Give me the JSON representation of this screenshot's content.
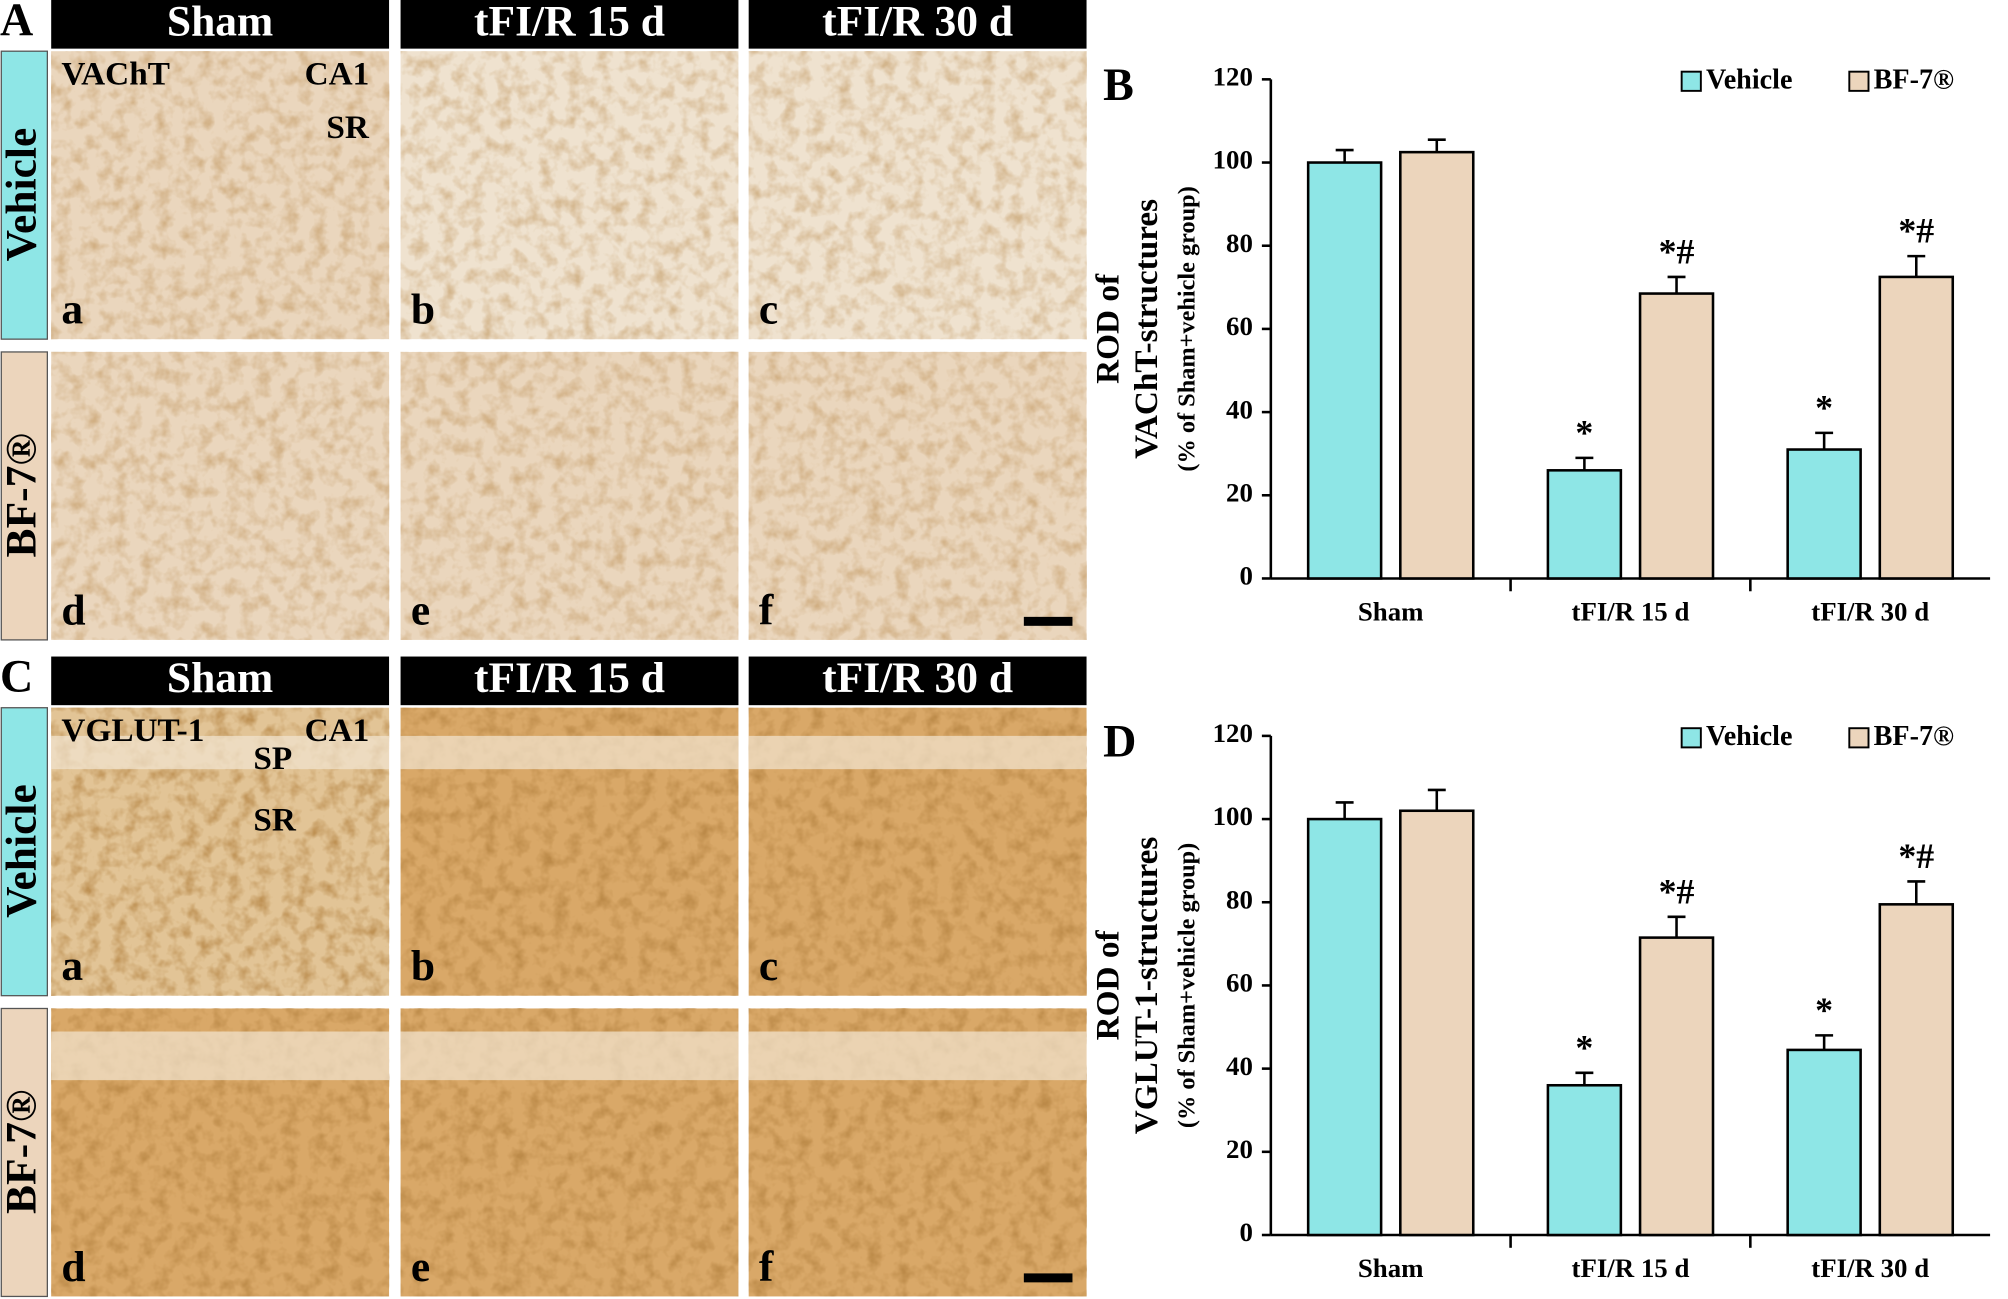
{
  "panels": [
    {
      "letter": "A",
      "columns": [
        "Sham",
        "tFI/R 15 d",
        "tFI/R 30 d"
      ],
      "rows": [
        "Vehicle",
        "BF-7®"
      ],
      "marker": "VAChT",
      "region_labels": [
        "CA1",
        "SR"
      ],
      "image_letters": [
        "a",
        "b",
        "c",
        "d",
        "e",
        "f"
      ]
    },
    {
      "letter": "C",
      "columns": [
        "Sham",
        "tFI/R 15 d",
        "tFI/R 30 d"
      ],
      "rows": [
        "Vehicle",
        "BF-7®"
      ],
      "marker": "VGLUT-1",
      "region_labels": [
        "CA1",
        "SP",
        "SR"
      ],
      "image_letters": [
        "a",
        "b",
        "c",
        "d",
        "e",
        "f"
      ]
    }
  ],
  "chart_data": [
    {
      "type": "bar",
      "panel_label": "B",
      "ylabel": [
        "ROD of",
        "VAChT-structures"
      ],
      "ylabel_note": "(% of Sham+vehicle group)",
      "categories": [
        "Sham",
        "tFI/R 15 d",
        "tFI/R 30 d"
      ],
      "series": [
        {
          "name": "Vehicle",
          "color": "#8ee6e6",
          "values": [
            100,
            26,
            31
          ],
          "errors": [
            3,
            3,
            4
          ],
          "annotations": [
            null,
            "*",
            "*"
          ]
        },
        {
          "name": "BF-7®",
          "color": "#ecd5bc",
          "values": [
            102.5,
            68.5,
            72.5
          ],
          "errors": [
            3,
            4,
            5
          ],
          "annotations": [
            null,
            "*#",
            "*#"
          ]
        }
      ],
      "ylim": [
        0,
        120
      ],
      "yticks": [
        0,
        20,
        40,
        60,
        80,
        100,
        120
      ],
      "legend": "top-right"
    },
    {
      "type": "bar",
      "panel_label": "D",
      "ylabel": [
        "ROD of",
        "VGLUT-1-structures"
      ],
      "ylabel_note": "(% of Sham+vehicle group)",
      "categories": [
        "Sham",
        "tFI/R 15 d",
        "tFI/R 30 d"
      ],
      "series": [
        {
          "name": "Vehicle",
          "color": "#8ee6e6",
          "values": [
            100,
            36,
            44.5
          ],
          "errors": [
            4,
            3,
            3.5
          ],
          "annotations": [
            null,
            "*",
            "*"
          ]
        },
        {
          "name": "BF-7®",
          "color": "#ecd5bc",
          "values": [
            102,
            71.5,
            79.5
          ],
          "errors": [
            5,
            5,
            5.5
          ],
          "annotations": [
            null,
            "*#",
            "*#"
          ]
        }
      ],
      "ylim": [
        0,
        120
      ],
      "yticks": [
        0,
        20,
        40,
        60,
        80,
        100,
        120
      ],
      "legend": "top-right"
    }
  ]
}
